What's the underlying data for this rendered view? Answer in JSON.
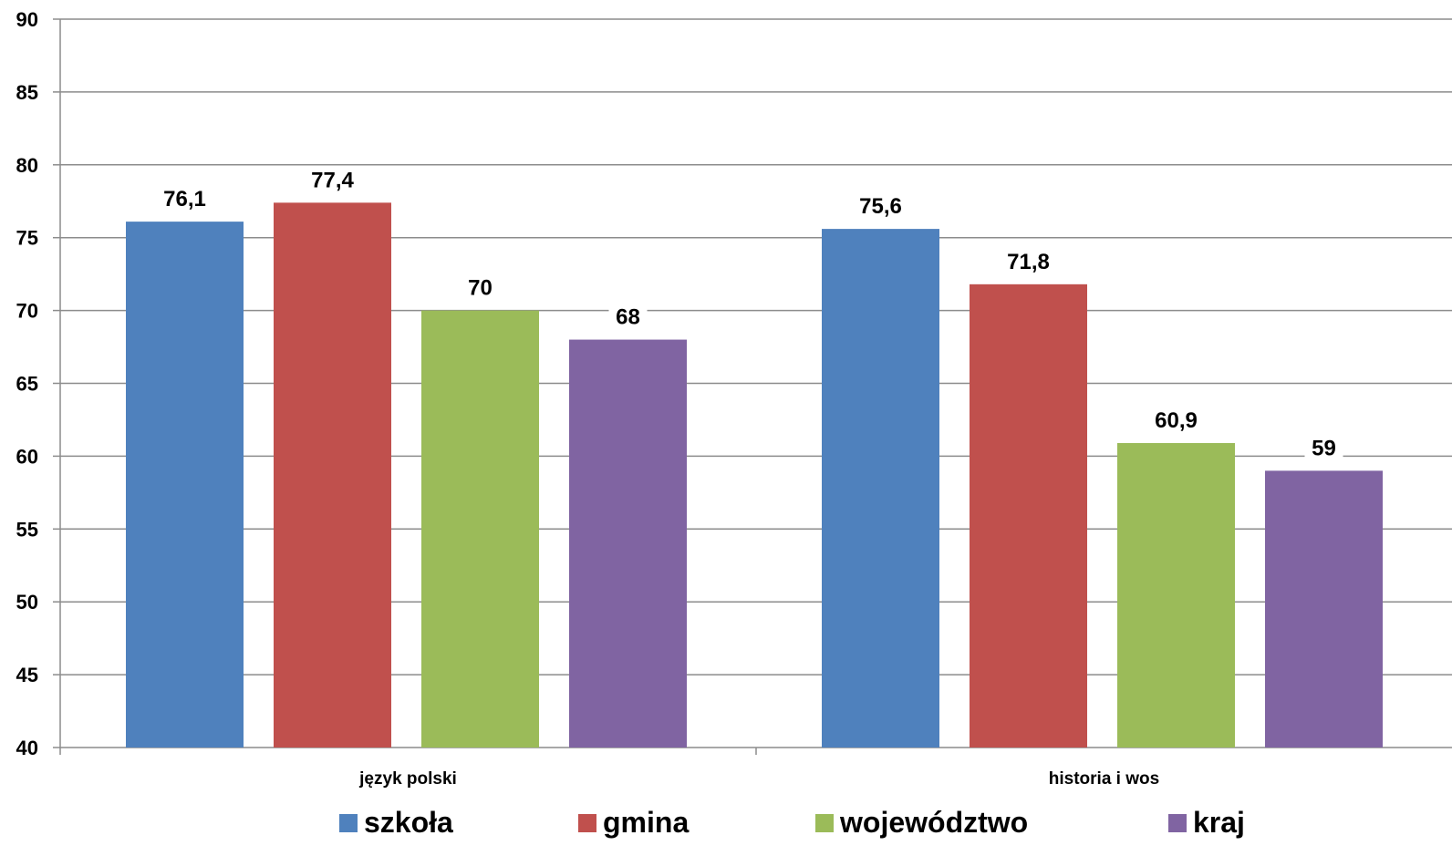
{
  "chart_data": {
    "type": "bar",
    "title": "",
    "xlabel": "",
    "ylabel": "",
    "ylim": [
      40,
      90
    ],
    "y_ticks": [
      90,
      85,
      80,
      75,
      70,
      65,
      60,
      55,
      50,
      45,
      40
    ],
    "grid": true,
    "legend_position": "bottom",
    "categories": [
      "język polski",
      "historia i wos"
    ],
    "series": [
      {
        "name": "szkoła",
        "color": "#4F81BD",
        "values": [
          76.1,
          75.6
        ],
        "labels": [
          "76,1",
          "75,6"
        ]
      },
      {
        "name": "gmina",
        "color": "#C0504D",
        "values": [
          77.4,
          71.8
        ],
        "labels": [
          "77,4",
          "71,8"
        ]
      },
      {
        "name": "województwo",
        "color": "#9BBB59",
        "values": [
          70,
          60.9
        ],
        "labels": [
          "70",
          "60,9"
        ]
      },
      {
        "name": "kraj",
        "color": "#8064A2",
        "values": [
          68,
          59
        ],
        "labels": [
          "68",
          "59"
        ]
      }
    ]
  }
}
